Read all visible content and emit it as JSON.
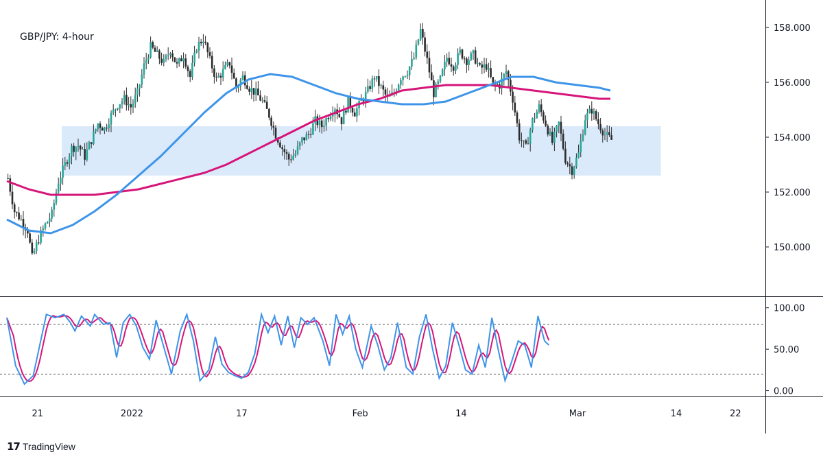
{
  "brand": {
    "logo_mark": "17",
    "name": "TradingView"
  },
  "colors": {
    "up_candle": "#26a69a",
    "candle": "#2b2b2b",
    "ma_fast": "#3d94e8",
    "ma_slow": "#d6157a",
    "zone": "#dbeafb",
    "stoch_k": "#3d94e8",
    "stoch_d": "#d6157a"
  },
  "chart_data": [
    {
      "type": "candlestick",
      "title": "GBP/JPY: 4-hour",
      "y_ticks": [
        "158.000",
        "156.000",
        "154.000",
        "152.000",
        "150.000"
      ],
      "ylim": [
        148.2,
        159.0
      ],
      "x_ticks": [
        "21",
        "2022",
        "17",
        "Feb",
        "14",
        "Mar",
        "14",
        "22"
      ],
      "support_zone": {
        "from": 152.6,
        "to": 154.4
      },
      "price_path": [
        [
          0,
          152.5
        ],
        [
          3,
          151.3
        ],
        [
          6,
          151.0
        ],
        [
          9,
          150.6
        ],
        [
          11,
          149.6
        ],
        [
          14,
          150.3
        ],
        [
          17,
          150.8
        ],
        [
          20,
          151.2
        ],
        [
          23,
          152.4
        ],
        [
          26,
          153.0
        ],
        [
          29,
          153.6
        ],
        [
          32,
          153.7
        ],
        [
          35,
          153.3
        ],
        [
          38,
          153.9
        ],
        [
          41,
          154.5
        ],
        [
          44,
          154.3
        ],
        [
          47,
          154.8
        ],
        [
          50,
          155.2
        ],
        [
          53,
          155.4
        ],
        [
          56,
          155.1
        ],
        [
          59,
          155.6
        ],
        [
          62,
          156.6
        ],
        [
          65,
          157.3
        ],
        [
          68,
          157.0
        ],
        [
          71,
          156.7
        ],
        [
          74,
          157.2
        ],
        [
          77,
          156.6
        ],
        [
          80,
          157.0
        ],
        [
          83,
          156.2
        ],
        [
          86,
          157.3
        ],
        [
          89,
          157.6
        ],
        [
          92,
          156.8
        ],
        [
          95,
          156.1
        ],
        [
          98,
          156.4
        ],
        [
          101,
          156.7
        ],
        [
          104,
          155.8
        ],
        [
          107,
          156.2
        ],
        [
          110,
          155.8
        ],
        [
          113,
          155.6
        ],
        [
          116,
          155.3
        ],
        [
          119,
          154.8
        ],
        [
          122,
          154.1
        ],
        [
          125,
          153.6
        ],
        [
          128,
          153.2
        ],
        [
          131,
          153.4
        ],
        [
          134,
          153.9
        ],
        [
          137,
          154.1
        ],
        [
          140,
          154.6
        ],
        [
          143,
          154.4
        ],
        [
          146,
          154.8
        ],
        [
          149,
          155.1
        ],
        [
          152,
          154.6
        ],
        [
          155,
          155.3
        ],
        [
          158,
          154.9
        ],
        [
          161,
          155.3
        ],
        [
          164,
          155.7
        ],
        [
          167,
          156.2
        ],
        [
          170,
          155.8
        ],
        [
          173,
          155.4
        ],
        [
          176,
          155.6
        ],
        [
          179,
          156.2
        ],
        [
          182,
          156.4
        ],
        [
          185,
          156.9
        ],
        [
          188,
          157.9
        ],
        [
          191,
          156.8
        ],
        [
          194,
          155.6
        ],
        [
          197,
          156.1
        ],
        [
          200,
          156.9
        ],
        [
          203,
          156.6
        ],
        [
          206,
          157.1
        ],
        [
          209,
          156.8
        ],
        [
          212,
          157.0
        ],
        [
          215,
          156.5
        ],
        [
          218,
          156.6
        ],
        [
          221,
          155.9
        ],
        [
          224,
          155.9
        ],
        [
          227,
          156.4
        ],
        [
          230,
          155.4
        ],
        [
          233,
          154.0
        ],
        [
          236,
          153.6
        ],
        [
          239,
          154.6
        ],
        [
          242,
          155.1
        ],
        [
          245,
          154.5
        ],
        [
          248,
          153.8
        ],
        [
          251,
          154.5
        ],
        [
          254,
          153.2
        ],
        [
          257,
          152.8
        ],
        [
          260,
          153.4
        ],
        [
          263,
          154.7
        ],
        [
          266,
          155.0
        ],
        [
          269,
          154.5
        ],
        [
          272,
          154.1
        ],
        [
          275,
          153.9
        ]
      ],
      "series": [
        {
          "points": [
            [
              0,
              151.0
            ],
            [
              10,
              150.6
            ],
            [
              20,
              150.5
            ],
            [
              30,
              150.8
            ],
            [
              40,
              151.3
            ],
            [
              50,
              151.9
            ],
            [
              60,
              152.6
            ],
            [
              70,
              153.3
            ],
            [
              80,
              154.1
            ],
            [
              90,
              154.9
            ],
            [
              100,
              155.6
            ],
            [
              110,
              156.1
            ],
            [
              120,
              156.3
            ],
            [
              130,
              156.2
            ],
            [
              140,
              155.9
            ],
            [
              150,
              155.6
            ],
            [
              160,
              155.4
            ],
            [
              170,
              155.3
            ],
            [
              180,
              155.2
            ],
            [
              190,
              155.2
            ],
            [
              200,
              155.3
            ],
            [
              210,
              155.6
            ],
            [
              220,
              155.9
            ],
            [
              230,
              156.2
            ],
            [
              240,
              156.2
            ],
            [
              250,
              156.0
            ],
            [
              260,
              155.9
            ],
            [
              270,
              155.8
            ],
            [
              275,
              155.7
            ]
          ]
        },
        {
          "points": [
            [
              0,
              152.4
            ],
            [
              10,
              152.1
            ],
            [
              20,
              151.9
            ],
            [
              30,
              151.9
            ],
            [
              40,
              151.9
            ],
            [
              50,
              152.0
            ],
            [
              60,
              152.1
            ],
            [
              70,
              152.3
            ],
            [
              80,
              152.5
            ],
            [
              90,
              152.7
            ],
            [
              100,
              153.0
            ],
            [
              110,
              153.4
            ],
            [
              120,
              153.8
            ],
            [
              130,
              154.2
            ],
            [
              140,
              154.6
            ],
            [
              150,
              154.9
            ],
            [
              160,
              155.2
            ],
            [
              170,
              155.4
            ],
            [
              180,
              155.7
            ],
            [
              190,
              155.8
            ],
            [
              200,
              155.9
            ],
            [
              210,
              155.9
            ],
            [
              220,
              155.9
            ],
            [
              230,
              155.8
            ],
            [
              240,
              155.7
            ],
            [
              250,
              155.6
            ],
            [
              260,
              155.5
            ],
            [
              270,
              155.4
            ],
            [
              275,
              155.4
            ]
          ]
        }
      ]
    },
    {
      "type": "line",
      "y_ticks": [
        "100.00",
        "50.00",
        "0.00"
      ],
      "ylim": [
        -7,
        113
      ],
      "levels": [
        80,
        20
      ],
      "stoch_path": [
        [
          0,
          88
        ],
        [
          4,
          30
        ],
        [
          8,
          8
        ],
        [
          12,
          18
        ],
        [
          15,
          55
        ],
        [
          18,
          92
        ],
        [
          22,
          88
        ],
        [
          26,
          92
        ],
        [
          29,
          82
        ],
        [
          31,
          72
        ],
        [
          34,
          90
        ],
        [
          38,
          78
        ],
        [
          40,
          92
        ],
        [
          44,
          80
        ],
        [
          47,
          82
        ],
        [
          50,
          40
        ],
        [
          53,
          82
        ],
        [
          56,
          92
        ],
        [
          59,
          78
        ],
        [
          62,
          52
        ],
        [
          65,
          38
        ],
        [
          68,
          85
        ],
        [
          72,
          48
        ],
        [
          75,
          20
        ],
        [
          79,
          72
        ],
        [
          82,
          92
        ],
        [
          85,
          60
        ],
        [
          88,
          12
        ],
        [
          92,
          25
        ],
        [
          95,
          65
        ],
        [
          98,
          32
        ],
        [
          101,
          22
        ],
        [
          104,
          18
        ],
        [
          107,
          15
        ],
        [
          110,
          22
        ],
        [
          113,
          45
        ],
        [
          116,
          92
        ],
        [
          119,
          70
        ],
        [
          122,
          90
        ],
        [
          125,
          55
        ],
        [
          128,
          90
        ],
        [
          131,
          52
        ],
        [
          134,
          88
        ],
        [
          137,
          80
        ],
        [
          140,
          88
        ],
        [
          144,
          60
        ],
        [
          147,
          30
        ],
        [
          150,
          92
        ],
        [
          153,
          68
        ],
        [
          156,
          90
        ],
        [
          159,
          50
        ],
        [
          162,
          28
        ],
        [
          166,
          78
        ],
        [
          169,
          55
        ],
        [
          172,
          25
        ],
        [
          175,
          40
        ],
        [
          178,
          82
        ],
        [
          182,
          28
        ],
        [
          185,
          20
        ],
        [
          188,
          65
        ],
        [
          191,
          92
        ],
        [
          194,
          50
        ],
        [
          197,
          15
        ],
        [
          200,
          30
        ],
        [
          203,
          82
        ],
        [
          206,
          55
        ],
        [
          209,
          25
        ],
        [
          212,
          20
        ],
        [
          215,
          55
        ],
        [
          218,
          28
        ],
        [
          221,
          88
        ],
        [
          224,
          48
        ],
        [
          227,
          12
        ],
        [
          230,
          35
        ],
        [
          233,
          60
        ],
        [
          236,
          55
        ],
        [
          239,
          28
        ],
        [
          242,
          90
        ],
        [
          245,
          60
        ],
        [
          247,
          55
        ]
      ]
    }
  ]
}
